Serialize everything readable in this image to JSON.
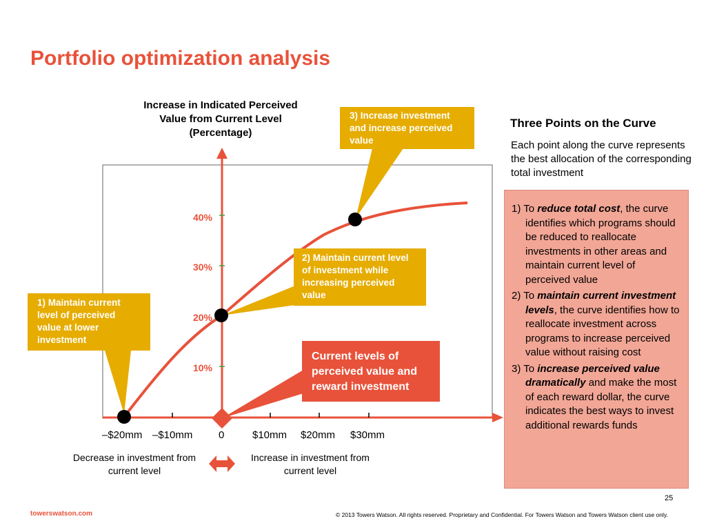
{
  "title": "Portfolio optimization analysis",
  "chart": {
    "y_title": [
      "Increase in Indicated Perceived",
      "Value from Current Level",
      "(Percentage)"
    ],
    "y_ticks": [
      "40%",
      "30%",
      "20%",
      "10%"
    ],
    "x_ticks": [
      "–$20mm",
      "–$10mm",
      "0",
      "$10mm",
      "$20mm",
      "$30mm"
    ],
    "x_caption_left": "Decrease in investment from current level",
    "x_caption_right": "Increase in investment from current level",
    "colors": {
      "curve": "#e8523a",
      "callout": "#e6ac00",
      "highlight": "#e8523a",
      "panel": "#f2a696"
    }
  },
  "callouts": {
    "c1": "1) Maintain current level of perceived value at lower investment",
    "c2": "2) Maintain current level of investment while increasing perceived value",
    "c3": "3) Increase investment and increase perceived value",
    "current": "Current levels of perceived value and reward investment"
  },
  "side": {
    "heading": "Three Points on the Curve",
    "description": "Each point along the curve represents the best allocation  of the corresponding total investment",
    "items": [
      {
        "pre": "1) To ",
        "emph": "reduce total cost",
        "post": ", the curve identifies which programs should be reduced to reallocate investments in other areas and maintain current level of perceived value"
      },
      {
        "pre": "2) To ",
        "emph": "maintain current investment levels",
        "post": ", the curve identifies how to reallocate investment across programs to increase perceived value without raising cost"
      },
      {
        "pre": "3) To ",
        "emph": "increase perceived value dramatically",
        "post": " and make the most of each reward dollar, the curve indicates the best ways to invest additional rewards funds"
      }
    ]
  },
  "footer": {
    "page": "25",
    "brand": "towerswatson.com",
    "copyright": "© 2013 Towers Watson. All rights reserved. Proprietary and Confidential. For Towers Watson and Towers Watson client use only."
  }
}
